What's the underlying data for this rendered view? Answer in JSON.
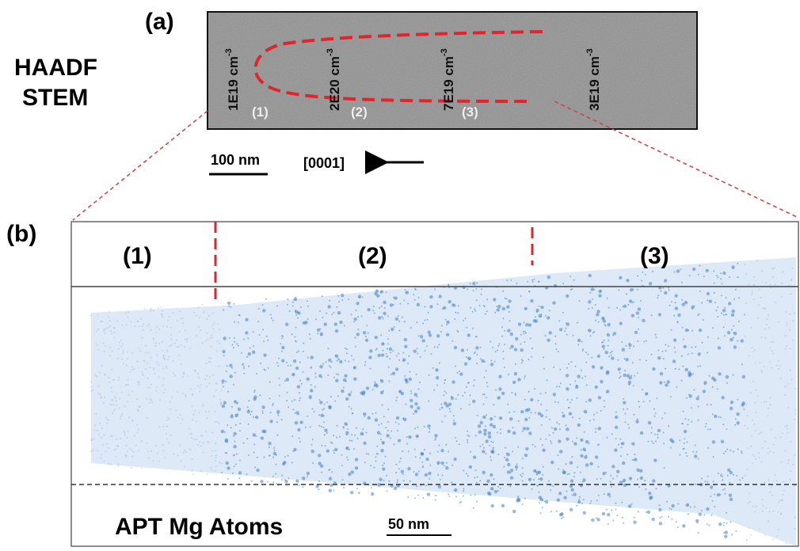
{
  "panel_a": {
    "label": "(a)",
    "side_label": [
      "HAADF",
      "STEM"
    ],
    "concentrations": [
      {
        "base": "1E19 cm",
        "exp": "-3"
      },
      {
        "base": "2E20 cm",
        "exp": "-3"
      },
      {
        "base": "7E19 cm",
        "exp": "-3"
      },
      {
        "base": "3E19 cm",
        "exp": "-3"
      }
    ],
    "regions": [
      "(1)",
      "(2)",
      "(3)"
    ],
    "scale_bar": "100 nm",
    "direction": "[0001]"
  },
  "panel_b": {
    "label": "(b)",
    "regions": [
      "(1)",
      "(2)",
      "(3)"
    ],
    "caption": "APT Mg Atoms",
    "scale_bar": "50 nm"
  }
}
